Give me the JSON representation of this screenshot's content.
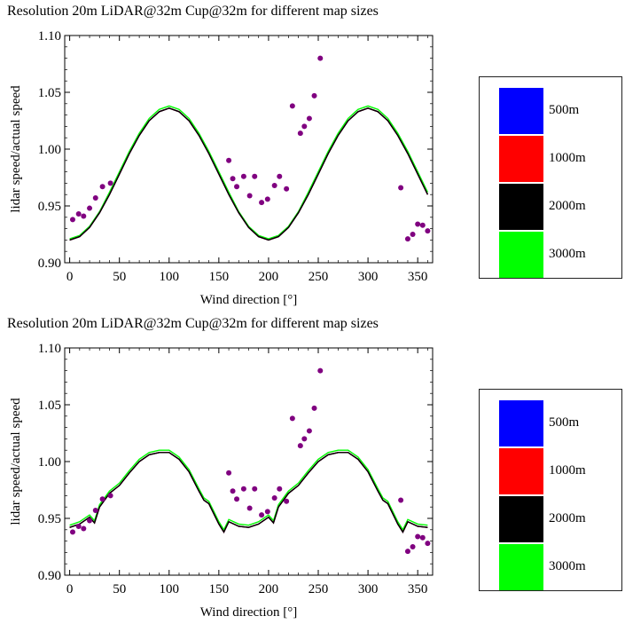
{
  "chart_data": [
    {
      "type": "line",
      "title": "Resolution 20m LiDAR@32m Cup@32m for different map sizes",
      "xlabel": "Wind direction [°]",
      "ylabel": "lidar speed/actual speed",
      "xlim": [
        -5,
        365
      ],
      "ylim": [
        0.9,
        1.1
      ],
      "x_ticks": [
        "0",
        "50",
        "100",
        "150",
        "200",
        "250",
        "300",
        "350"
      ],
      "y_ticks": [
        "0.90",
        "0.95",
        "1.00",
        "1.05",
        "1.10"
      ],
      "grid": false,
      "legend_position": "right",
      "legend": [
        "500m",
        "1000m",
        "2000m",
        "3000m"
      ],
      "colors": {
        "500m": "#0000ff",
        "1000m": "#ff0000",
        "2000m": "#000000",
        "3000m": "#00ff00",
        "measured": "#800080"
      },
      "x": [
        0,
        10,
        20,
        30,
        40,
        50,
        60,
        70,
        80,
        90,
        100,
        110,
        120,
        130,
        140,
        150,
        160,
        170,
        180,
        190,
        200,
        210,
        220,
        230,
        240,
        250,
        260,
        270,
        280,
        290,
        300,
        310,
        320,
        330,
        340,
        350,
        360
      ],
      "series": [
        {
          "name": "500m",
          "values": [
            0.92,
            0.923,
            0.931,
            0.944,
            0.96,
            0.978,
            0.996,
            1.012,
            1.025,
            1.033,
            1.036,
            1.033,
            1.025,
            1.012,
            0.996,
            0.978,
            0.96,
            0.944,
            0.931,
            0.923,
            0.92,
            0.923,
            0.931,
            0.944,
            0.96,
            0.978,
            0.996,
            1.012,
            1.025,
            1.033,
            1.036,
            1.033,
            1.025,
            1.012,
            0.996,
            0.978,
            0.96
          ]
        },
        {
          "name": "1000m",
          "values": [
            0.92,
            0.923,
            0.931,
            0.944,
            0.96,
            0.978,
            0.996,
            1.012,
            1.025,
            1.033,
            1.036,
            1.033,
            1.025,
            1.012,
            0.996,
            0.978,
            0.96,
            0.944,
            0.931,
            0.923,
            0.92,
            0.923,
            0.931,
            0.944,
            0.96,
            0.978,
            0.996,
            1.012,
            1.025,
            1.033,
            1.036,
            1.033,
            1.025,
            1.012,
            0.996,
            0.978,
            0.96
          ]
        },
        {
          "name": "2000m",
          "values": [
            0.92,
            0.923,
            0.931,
            0.944,
            0.96,
            0.978,
            0.996,
            1.012,
            1.025,
            1.033,
            1.036,
            1.033,
            1.025,
            1.012,
            0.996,
            0.978,
            0.96,
            0.944,
            0.931,
            0.923,
            0.92,
            0.923,
            0.931,
            0.944,
            0.96,
            0.978,
            0.996,
            1.012,
            1.025,
            1.033,
            1.036,
            1.033,
            1.025,
            1.012,
            0.996,
            0.978,
            0.96
          ]
        },
        {
          "name": "3000m",
          "values": [
            0.921,
            0.924,
            0.932,
            0.945,
            0.962,
            0.98,
            0.998,
            1.014,
            1.027,
            1.035,
            1.038,
            1.035,
            1.027,
            1.014,
            0.998,
            0.98,
            0.962,
            0.945,
            0.932,
            0.924,
            0.921,
            0.924,
            0.932,
            0.945,
            0.962,
            0.98,
            0.998,
            1.014,
            1.027,
            1.035,
            1.038,
            1.035,
            1.027,
            1.014,
            0.998,
            0.98,
            0.962
          ]
        }
      ],
      "scatter": {
        "x": [
          3,
          9,
          14,
          20,
          26,
          33,
          41,
          160,
          164,
          168,
          175,
          181,
          186,
          193,
          199,
          206,
          211,
          218,
          224,
          232,
          236,
          241,
          246,
          252,
          333,
          340,
          345,
          350,
          355,
          360
        ],
        "y": [
          0.938,
          0.943,
          0.941,
          0.948,
          0.957,
          0.967,
          0.97,
          0.99,
          0.974,
          0.967,
          0.976,
          0.959,
          0.976,
          0.953,
          0.956,
          0.968,
          0.976,
          0.965,
          1.038,
          1.014,
          1.02,
          1.027,
          1.047,
          1.08,
          0.966,
          0.921,
          0.925,
          0.934,
          0.933,
          0.928
        ]
      }
    },
    {
      "type": "line",
      "title": "Resolution 20m LiDAR@32m Cup@32m for different map sizes",
      "xlabel": "Wind direction [°]",
      "ylabel": "lidar speed/actual speed",
      "xlim": [
        -5,
        365
      ],
      "ylim": [
        0.9,
        1.1
      ],
      "x_ticks": [
        "0",
        "50",
        "100",
        "150",
        "200",
        "250",
        "300",
        "350"
      ],
      "y_ticks": [
        "0.90",
        "0.95",
        "1.00",
        "1.05",
        "1.10"
      ],
      "grid": false,
      "legend_position": "right",
      "legend": [
        "500m",
        "1000m",
        "2000m",
        "3000m"
      ],
      "colors": {
        "500m": "#0000ff",
        "1000m": "#ff0000",
        "2000m": "#000000",
        "3000m": "#00ff00",
        "measured": "#800080"
      },
      "x": [
        0,
        10,
        20,
        25,
        30,
        40,
        50,
        60,
        70,
        80,
        90,
        100,
        110,
        120,
        130,
        135,
        140,
        150,
        155,
        160,
        170,
        180,
        190,
        200,
        205,
        210,
        220,
        230,
        240,
        250,
        260,
        270,
        280,
        290,
        300,
        310,
        315,
        320,
        330,
        335,
        340,
        350,
        360
      ],
      "series": [
        {
          "name": "500m",
          "values": [
            0.942,
            0.945,
            0.951,
            0.946,
            0.96,
            0.972,
            0.979,
            0.99,
            1.0,
            1.006,
            1.008,
            1.008,
            1.002,
            0.991,
            0.974,
            0.966,
            0.963,
            0.945,
            0.938,
            0.947,
            0.943,
            0.942,
            0.945,
            0.951,
            0.946,
            0.96,
            0.972,
            0.979,
            0.99,
            1.0,
            1.006,
            1.008,
            1.008,
            1.002,
            0.991,
            0.974,
            0.966,
            0.963,
            0.945,
            0.938,
            0.947,
            0.943,
            0.942
          ]
        },
        {
          "name": "1000m",
          "values": [
            0.942,
            0.945,
            0.951,
            0.946,
            0.96,
            0.972,
            0.979,
            0.99,
            1.0,
            1.006,
            1.008,
            1.008,
            1.002,
            0.991,
            0.974,
            0.966,
            0.963,
            0.945,
            0.938,
            0.947,
            0.943,
            0.942,
            0.945,
            0.951,
            0.946,
            0.96,
            0.972,
            0.979,
            0.99,
            1.0,
            1.006,
            1.008,
            1.008,
            1.002,
            0.991,
            0.974,
            0.966,
            0.963,
            0.945,
            0.938,
            0.947,
            0.943,
            0.942
          ]
        },
        {
          "name": "2000m",
          "values": [
            0.942,
            0.945,
            0.951,
            0.946,
            0.96,
            0.972,
            0.979,
            0.99,
            1.0,
            1.006,
            1.008,
            1.008,
            1.002,
            0.991,
            0.974,
            0.966,
            0.963,
            0.945,
            0.938,
            0.947,
            0.943,
            0.942,
            0.945,
            0.951,
            0.946,
            0.96,
            0.972,
            0.979,
            0.99,
            1.0,
            1.006,
            1.008,
            1.008,
            1.002,
            0.991,
            0.974,
            0.966,
            0.963,
            0.945,
            0.938,
            0.947,
            0.943,
            0.942
          ]
        },
        {
          "name": "3000m",
          "values": [
            0.944,
            0.947,
            0.953,
            0.948,
            0.962,
            0.974,
            0.981,
            0.992,
            1.002,
            1.008,
            1.01,
            1.01,
            1.004,
            0.993,
            0.976,
            0.968,
            0.965,
            0.947,
            0.94,
            0.949,
            0.945,
            0.944,
            0.947,
            0.953,
            0.948,
            0.962,
            0.974,
            0.981,
            0.992,
            1.002,
            1.008,
            1.01,
            1.01,
            1.004,
            0.993,
            0.976,
            0.968,
            0.965,
            0.947,
            0.94,
            0.949,
            0.945,
            0.944
          ]
        }
      ],
      "scatter": {
        "x": [
          3,
          9,
          14,
          20,
          26,
          33,
          41,
          160,
          164,
          168,
          175,
          181,
          186,
          193,
          199,
          206,
          211,
          218,
          224,
          232,
          236,
          241,
          246,
          252,
          333,
          340,
          345,
          350,
          355,
          360
        ],
        "y": [
          0.938,
          0.943,
          0.941,
          0.948,
          0.957,
          0.967,
          0.97,
          0.99,
          0.974,
          0.967,
          0.976,
          0.959,
          0.976,
          0.953,
          0.956,
          0.968,
          0.976,
          0.965,
          1.038,
          1.014,
          1.02,
          1.027,
          1.047,
          1.08,
          0.966,
          0.921,
          0.925,
          0.934,
          0.933,
          0.928
        ]
      }
    }
  ]
}
